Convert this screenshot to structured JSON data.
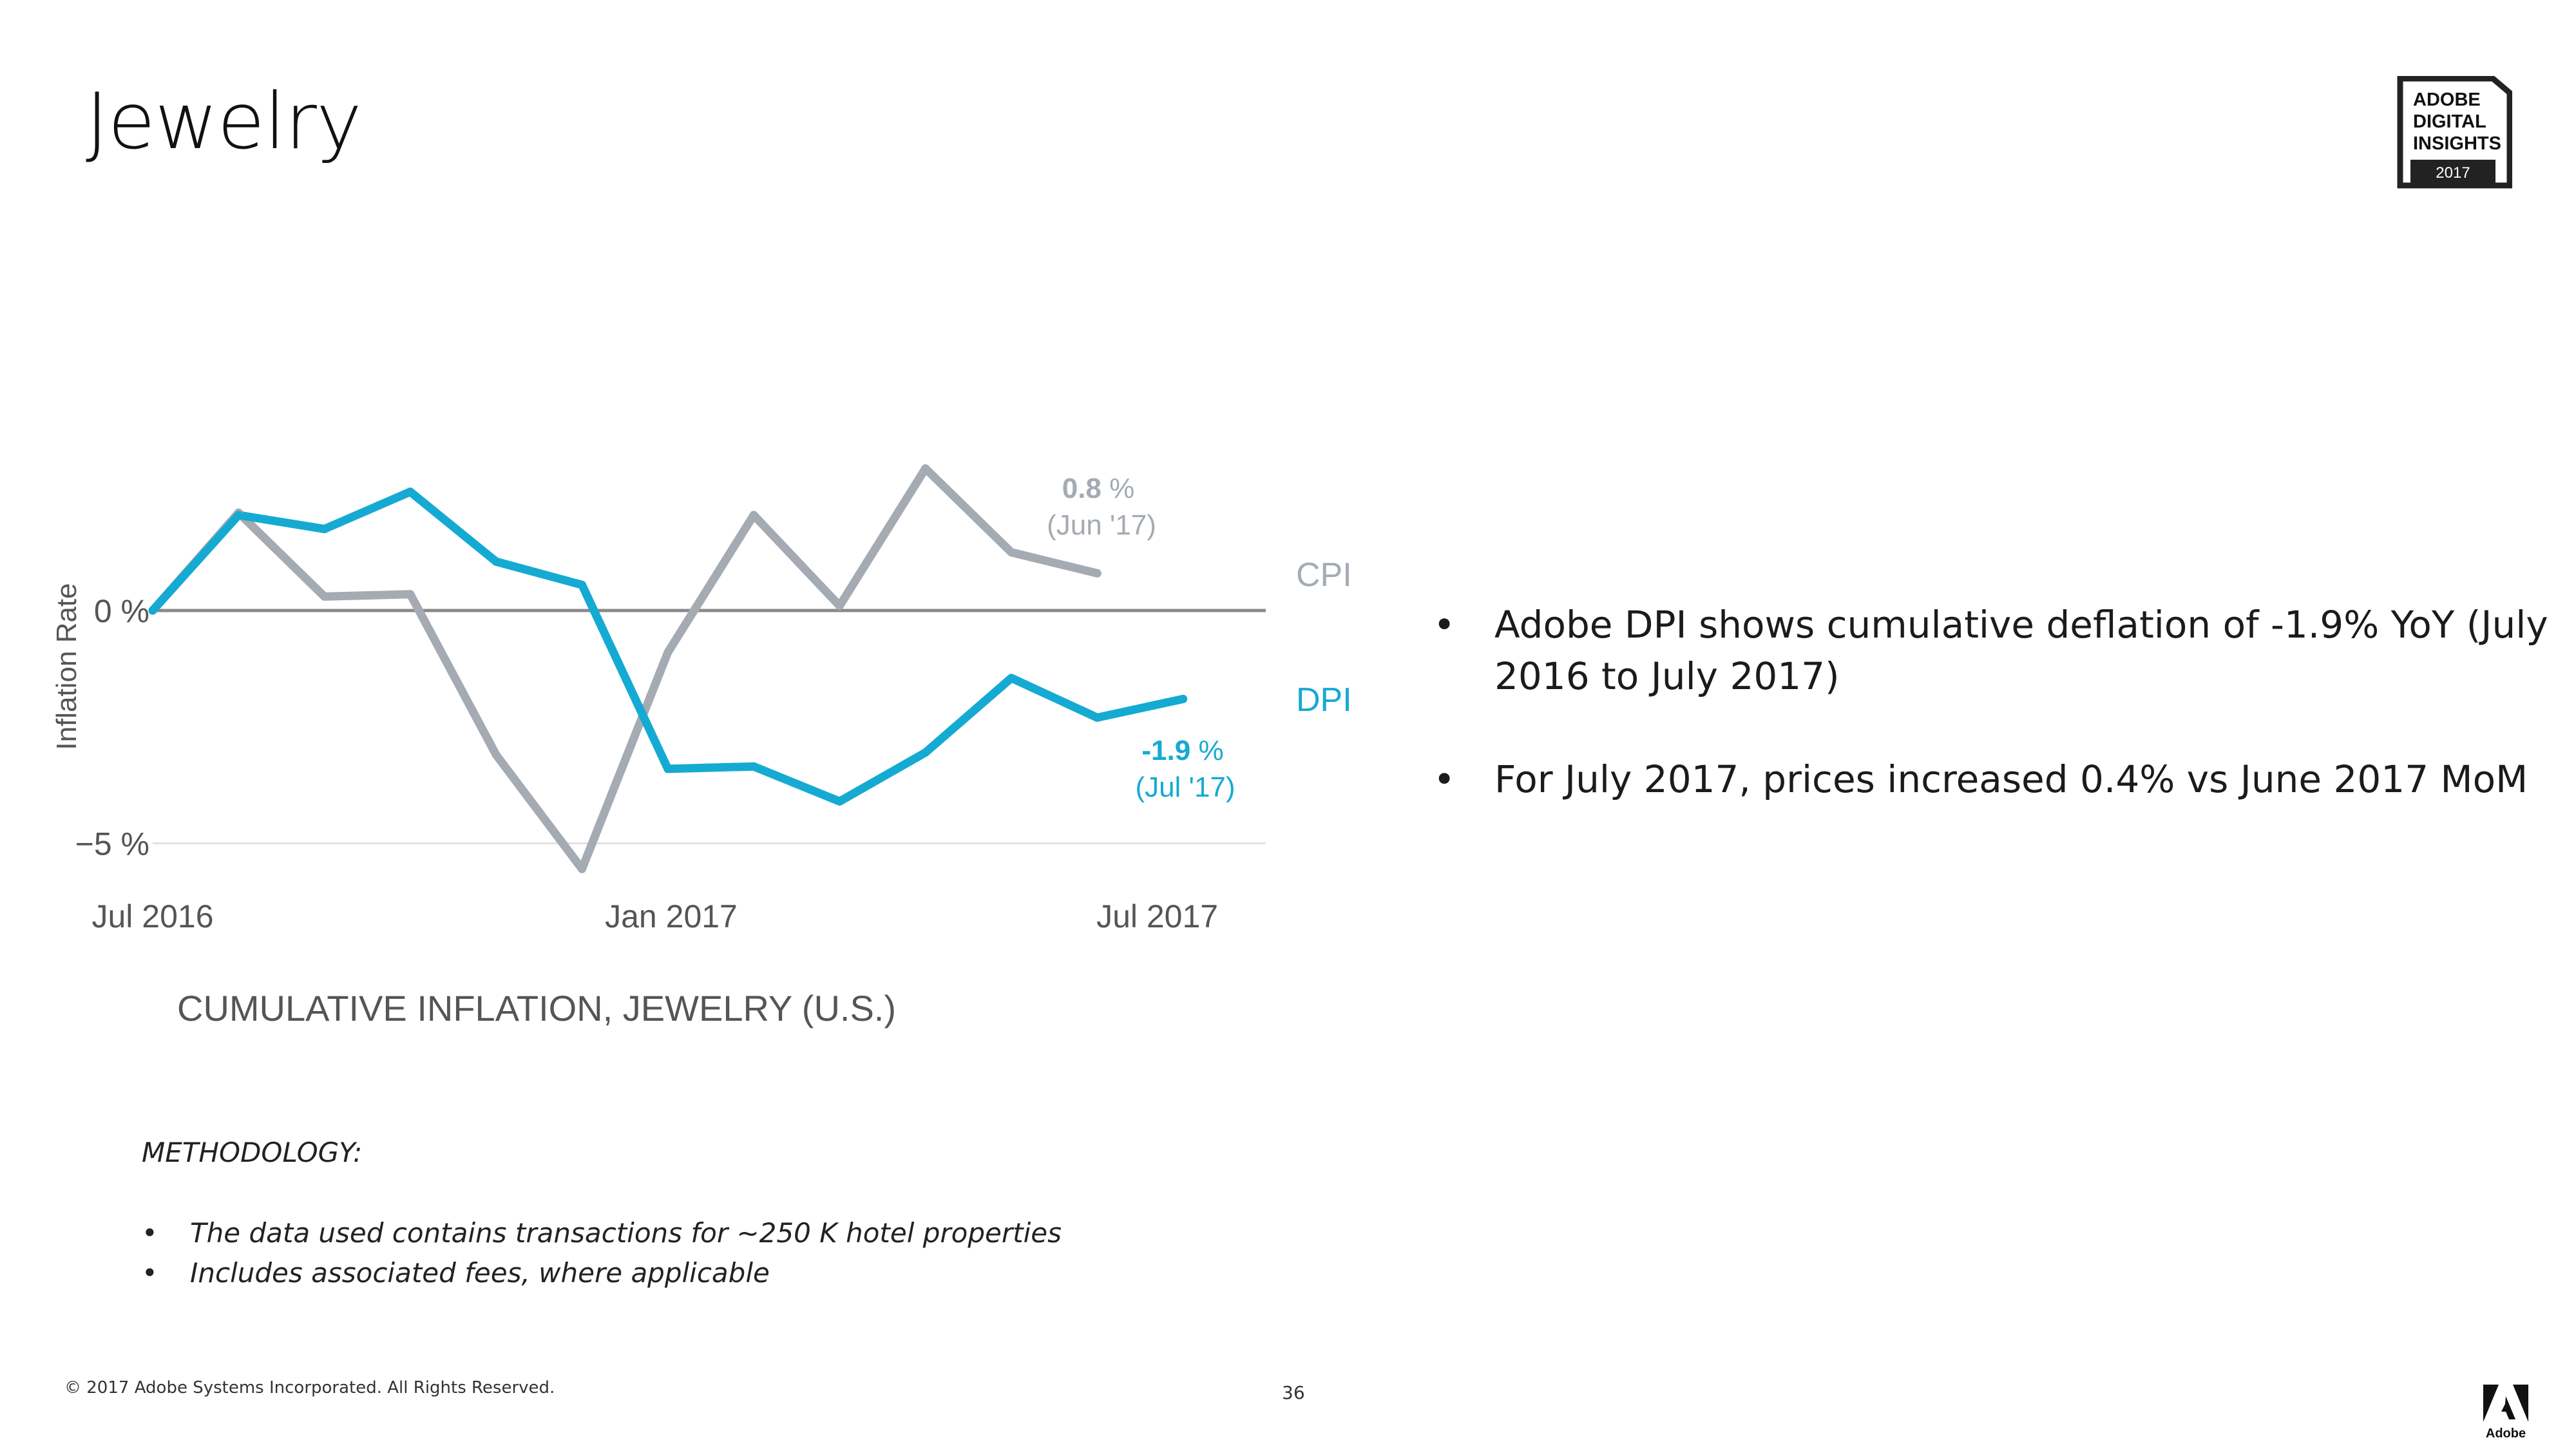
{
  "slide": {
    "title": "Jewelry",
    "page_number": "36",
    "copyright": "© 2017 Adobe Systems Incorporated.  All Rights Reserved."
  },
  "badge": {
    "line1": "ADOBE",
    "line2": "DIGITAL",
    "line3": "INSIGHTS",
    "year": "2017"
  },
  "logo": {
    "wordmark": "Adobe"
  },
  "colors": {
    "cpi": "#a4abb2",
    "dpi": "#15aad2",
    "axis_text": "#555555",
    "baseline": "#8a8a8a",
    "grid": "#e2e2e2"
  },
  "bullets": [
    "Adobe DPI shows cumulative deflation of -1.9% YoY (July 2016 to July 2017)",
    "For July 2017, prices increased 0.4% vs June 2017 MoM"
  ],
  "methodology": {
    "heading": "METHODOLOGY:",
    "items": [
      "The data used contains transactions for ~250 K hotel properties",
      "Includes associated fees, where applicable"
    ]
  },
  "chart_data": {
    "type": "line",
    "title": "CUMULATIVE INFLATION, JEWELRY (U.S.)",
    "xlabel": "",
    "ylabel": "Inflation Rate",
    "x": [
      0,
      1,
      2,
      3,
      4,
      5,
      6,
      7,
      8,
      9,
      10,
      11,
      12
    ],
    "x_ticks": [
      {
        "x": 0,
        "label": "Jul 2016"
      },
      {
        "x": 6,
        "label": "Jan 2017"
      },
      {
        "x": 12,
        "label": "Jul 2017"
      }
    ],
    "y_ticks": [
      {
        "y": 0,
        "label": "0 %"
      },
      {
        "y": -5,
        "label": "−5 %"
      }
    ],
    "ylim": [
      -5.8,
      3.5
    ],
    "xlim": [
      0,
      13
    ],
    "series": [
      {
        "name": "CPI",
        "x": [
          0,
          1,
          2,
          3,
          4,
          5,
          6,
          7,
          8,
          9,
          10,
          11
        ],
        "values": [
          0.0,
          2.1,
          0.3,
          0.35,
          -3.1,
          -5.55,
          -0.9,
          2.05,
          0.1,
          3.05,
          1.25,
          0.8
        ]
      },
      {
        "name": "DPI",
        "x": [
          0,
          1,
          2,
          3,
          4,
          5,
          6,
          7,
          8,
          9,
          10,
          11,
          12
        ],
        "values": [
          0.0,
          2.05,
          1.75,
          2.55,
          1.05,
          0.55,
          -3.4,
          -3.35,
          -4.1,
          -3.05,
          -1.45,
          -2.3,
          -1.9
        ]
      }
    ],
    "annotations": {
      "cpi_value": "0.8",
      "cpi_unit": " %",
      "cpi_date": "(Jun '17)",
      "dpi_value": "-1.9",
      "dpi_unit": " %",
      "dpi_date": "(Jul '17)"
    },
    "legend": {
      "cpi": "CPI",
      "dpi": "DPI"
    }
  }
}
